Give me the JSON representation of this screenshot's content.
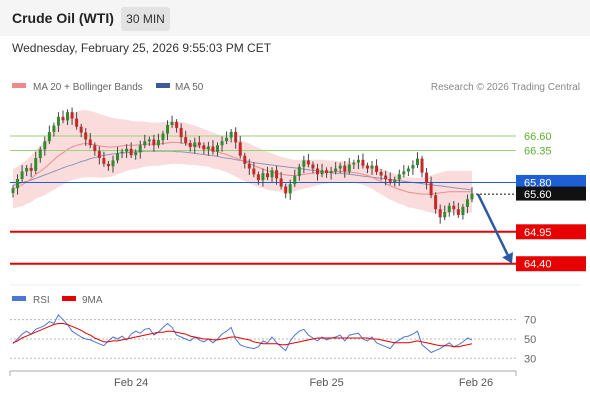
{
  "header": {
    "title": "Crude Oil (WTI)",
    "timeframe": "30 MIN"
  },
  "timestamp": "Wednesday, February 25, 2026 9:55:03 PM CET",
  "legend": {
    "ma20": "MA 20 + Bollinger Bands",
    "ma50": "MA 50",
    "credit": "Research © 2026 Trading Central"
  },
  "rsi_legend": {
    "rsi": "RSI",
    "ma": "9MA"
  },
  "colors": {
    "ma20": "#f08a8a",
    "ma50": "#3a5a9c",
    "band": "#fbdcdc",
    "bull": "#2e8b2e",
    "bear": "#c62828",
    "resistance": "#9bd37a",
    "support": "#e60000",
    "pivot": "#1f5fd6",
    "current": "#111111",
    "arrow": "#2c5aa0",
    "rsi_line": "#4a78d6",
    "rsi_ma": "#e60000"
  },
  "chart_data": [
    {
      "type": "candlestick",
      "levels": [
        {
          "value": 66.6,
          "label": "66.60",
          "kind": "resistance"
        },
        {
          "value": 66.35,
          "label": "66.35",
          "kind": "resistance"
        },
        {
          "value": 65.8,
          "label": "65.80",
          "kind": "pivot"
        },
        {
          "value": 65.6,
          "label": "65.60",
          "kind": "current"
        },
        {
          "value": 64.95,
          "label": "64.95",
          "kind": "support"
        },
        {
          "value": 64.4,
          "label": "64.40",
          "kind": "support"
        }
      ],
      "x_ticks": [
        "Feb 24",
        "Feb 25",
        "Feb 26"
      ],
      "ylim": [
        64.12,
        67.22
      ],
      "closes": [
        65.7,
        65.86,
        65.99,
        66.05,
        66.0,
        66.22,
        66.37,
        66.51,
        66.67,
        66.78,
        66.93,
        66.87,
        67.01,
        66.9,
        66.76,
        66.66,
        66.54,
        66.44,
        66.34,
        66.22,
        66.12,
        66.08,
        66.18,
        66.3,
        66.33,
        66.38,
        66.27,
        66.32,
        66.44,
        66.51,
        66.54,
        66.44,
        66.53,
        66.64,
        66.79,
        66.84,
        66.74,
        66.58,
        66.48,
        66.41,
        66.49,
        66.44,
        66.37,
        66.42,
        66.33,
        66.44,
        66.51,
        66.57,
        66.67,
        66.49,
        66.26,
        66.12,
        66.04,
        65.94,
        65.84,
        65.96,
        65.89,
        66.01,
        65.87,
        65.73,
        65.61,
        65.77,
        65.91,
        66.07,
        66.18,
        66.11,
        66.04,
        65.94,
        66.01,
        65.96,
        65.99,
        66.04,
        66.09,
        65.99,
        66.11,
        66.14,
        66.19,
        66.09,
        66.04,
        66.09,
        65.98,
        65.92,
        65.86,
        65.81,
        65.85,
        65.94,
        65.99,
        66.04,
        66.1,
        66.21,
        65.97,
        65.79,
        65.58,
        65.34,
        65.2,
        65.29,
        65.4,
        65.34,
        65.24,
        65.38,
        65.51,
        65.61
      ],
      "ma20": [
        65.69,
        65.72,
        65.76,
        65.81,
        65.86,
        65.94,
        65.99,
        66.05,
        66.12,
        66.19,
        66.26,
        66.31,
        66.37,
        66.41,
        66.44,
        66.46,
        66.47,
        66.46,
        66.45,
        66.43,
        66.42,
        66.41,
        66.41,
        66.42,
        66.43,
        66.44,
        66.44,
        66.44,
        66.45,
        66.46,
        66.46,
        66.46,
        66.46,
        66.47,
        66.48,
        66.49,
        66.49,
        66.48,
        66.47,
        66.45,
        66.44,
        66.42,
        66.4,
        66.38,
        66.35,
        66.33,
        66.3,
        66.28,
        66.25,
        66.22,
        66.19,
        66.16,
        66.13,
        66.09,
        66.06,
        66.03,
        66.0,
        65.98,
        65.96,
        65.94,
        65.93,
        65.92,
        65.92,
        65.93,
        65.94,
        65.95,
        65.96,
        65.97,
        65.98,
        65.98,
        65.99,
        65.99,
        65.99,
        65.98,
        65.98,
        65.97,
        65.96,
        65.94,
        65.92,
        65.89,
        65.85,
        65.82,
        65.78,
        65.74,
        65.71,
        65.68,
        65.66,
        65.63,
        65.62,
        65.61,
        65.6,
        65.6,
        65.6,
        65.61,
        65.62,
        65.63,
        65.64,
        65.64,
        65.64,
        65.64,
        65.64,
        65.64
      ],
      "ma50": [
        65.75,
        65.77,
        65.8,
        65.82,
        65.84,
        65.87,
        65.9,
        65.93,
        65.96,
        65.99,
        66.02,
        66.05,
        66.08,
        66.1,
        66.13,
        66.16,
        66.18,
        66.21,
        66.23,
        66.25,
        66.27,
        66.28,
        66.29,
        66.3,
        66.31,
        66.31,
        66.32,
        66.33,
        66.33,
        66.34,
        66.34,
        66.34,
        66.34,
        66.34,
        66.34,
        66.34,
        66.33,
        66.33,
        66.32,
        66.31,
        66.3,
        66.29,
        66.28,
        66.27,
        66.26,
        66.25,
        66.23,
        66.22,
        66.21,
        66.19,
        66.18,
        66.17,
        66.16,
        66.14,
        66.13,
        66.12,
        66.11,
        66.1,
        66.09,
        66.08,
        66.07,
        66.06,
        66.05,
        66.04,
        66.03,
        66.02,
        66.01,
        66.0,
        65.99,
        65.98,
        65.97,
        65.96,
        65.96,
        65.95,
        65.94,
        65.93,
        65.92,
        65.91,
        65.9,
        65.89,
        65.88,
        65.87,
        65.86,
        65.85,
        65.84,
        65.83,
        65.82,
        65.81,
        65.8,
        65.79,
        65.78,
        65.77,
        65.76,
        65.75,
        65.74,
        65.73,
        65.72,
        65.71,
        65.7,
        65.69,
        65.68,
        65.67
      ],
      "bb_width": [
        0.34,
        0.35,
        0.37,
        0.38,
        0.4,
        0.42,
        0.44,
        0.47,
        0.49,
        0.52,
        0.54,
        0.55,
        0.56,
        0.57,
        0.58,
        0.58,
        0.58,
        0.57,
        0.56,
        0.55,
        0.54,
        0.52,
        0.5,
        0.48,
        0.46,
        0.44,
        0.42,
        0.41,
        0.4,
        0.39,
        0.38,
        0.37,
        0.37,
        0.37,
        0.37,
        0.37,
        0.37,
        0.36,
        0.36,
        0.35,
        0.34,
        0.33,
        0.32,
        0.31,
        0.31,
        0.3,
        0.3,
        0.3,
        0.31,
        0.32,
        0.33,
        0.34,
        0.34,
        0.34,
        0.34,
        0.33,
        0.33,
        0.32,
        0.31,
        0.3,
        0.29,
        0.28,
        0.27,
        0.26,
        0.25,
        0.24,
        0.23,
        0.22,
        0.21,
        0.2,
        0.19,
        0.18,
        0.18,
        0.18,
        0.18,
        0.18,
        0.18,
        0.18,
        0.19,
        0.2,
        0.21,
        0.22,
        0.23,
        0.24,
        0.24,
        0.25,
        0.25,
        0.26,
        0.26,
        0.27,
        0.28,
        0.3,
        0.32,
        0.34,
        0.35,
        0.36,
        0.36,
        0.36,
        0.36,
        0.36,
        0.36,
        0.36
      ],
      "forecast": [
        65.6,
        64.4
      ]
    },
    {
      "type": "line",
      "title": "RSI",
      "y_ticks": [
        70,
        50,
        30
      ],
      "ylim": [
        22,
        80
      ],
      "series": [
        {
          "name": "RSI",
          "values": [
            45,
            50,
            55,
            58,
            55,
            60,
            62,
            64,
            68,
            66,
            75,
            70,
            65,
            58,
            55,
            52,
            50,
            49,
            47,
            45,
            43,
            48,
            52,
            50,
            53,
            49,
            55,
            58,
            56,
            60,
            61,
            54,
            57,
            62,
            66,
            62,
            54,
            52,
            50,
            48,
            52,
            49,
            47,
            50,
            46,
            50,
            55,
            58,
            62,
            50,
            44,
            42,
            41,
            40,
            42,
            48,
            46,
            52,
            46,
            42,
            38,
            48,
            54,
            58,
            60,
            54,
            51,
            48,
            52,
            49,
            51,
            52,
            54,
            48,
            54,
            55,
            56,
            50,
            48,
            52,
            46,
            44,
            42,
            40,
            46,
            49,
            52,
            53,
            55,
            58,
            44,
            40,
            36,
            38,
            40,
            43,
            46,
            42,
            44,
            47,
            51,
            49
          ]
        },
        {
          "name": "9MA",
          "values": [
            46,
            48,
            51,
            53,
            55,
            57,
            59,
            61,
            63,
            65,
            66,
            66,
            65,
            63,
            61,
            59,
            56,
            54,
            51,
            49,
            47,
            47,
            48,
            48,
            49,
            50,
            51,
            52,
            53,
            54,
            55,
            56,
            57,
            57,
            58,
            58,
            57,
            56,
            55,
            53,
            52,
            51,
            50,
            50,
            49,
            49,
            50,
            51,
            52,
            52,
            51,
            50,
            49,
            47,
            46,
            45,
            45,
            45,
            45,
            44,
            44,
            45,
            46,
            47,
            48,
            49,
            50,
            51,
            51,
            51,
            51,
            51,
            51,
            51,
            51,
            51,
            51,
            51,
            51,
            50,
            50,
            49,
            48,
            47,
            46,
            46,
            46,
            46,
            47,
            48,
            47,
            46,
            45,
            44,
            43,
            43,
            43,
            42,
            42,
            43,
            44,
            45
          ]
        }
      ]
    }
  ]
}
